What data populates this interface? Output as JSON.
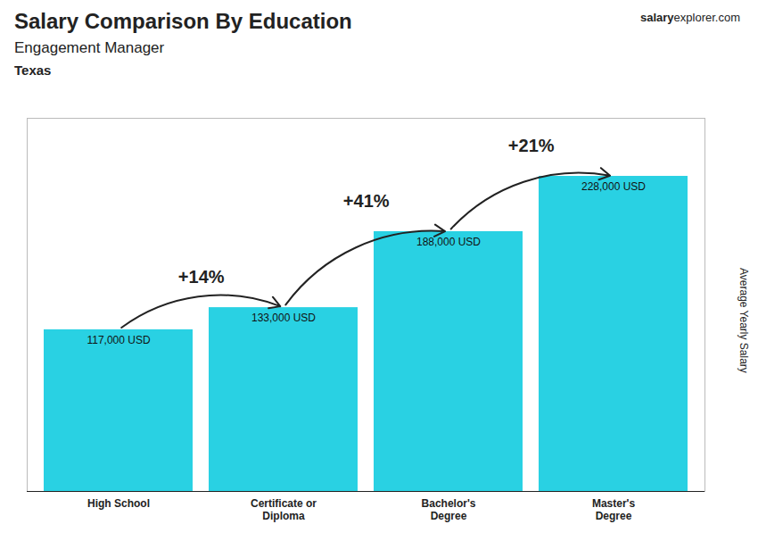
{
  "chart_data": {
    "type": "bar",
    "title": "Salary Comparison By Education",
    "subtitle": "Engagement Manager",
    "location": "Texas",
    "source": [
      "salary",
      "explorer.com"
    ],
    "ylabel": "Average Yearly Salary",
    "categories": [
      "High School",
      "Certificate or\nDiploma",
      "Bachelor's\nDegree",
      "Master's\nDegree"
    ],
    "values": [
      117000,
      133000,
      188000,
      228000
    ],
    "value_labels": [
      "117,000 USD",
      "133,000 USD",
      "188,000 USD",
      "228,000 USD"
    ],
    "data_labels": true,
    "color": "#29d1e3",
    "ylim": [
      0,
      270000
    ],
    "yticks": [],
    "tick_labels": "x",
    "grid": false,
    "annotations": [
      {
        "text": "+14%",
        "from": "High School",
        "to": "Certificate or\nDiploma"
      },
      {
        "text": "+41%",
        "from": "Certificate or\nDiploma",
        "to": "Bachelor's\nDegree"
      },
      {
        "text": "+21%",
        "from": "Bachelor's\nDegree",
        "to": "Master's\nDegree"
      }
    ]
  }
}
